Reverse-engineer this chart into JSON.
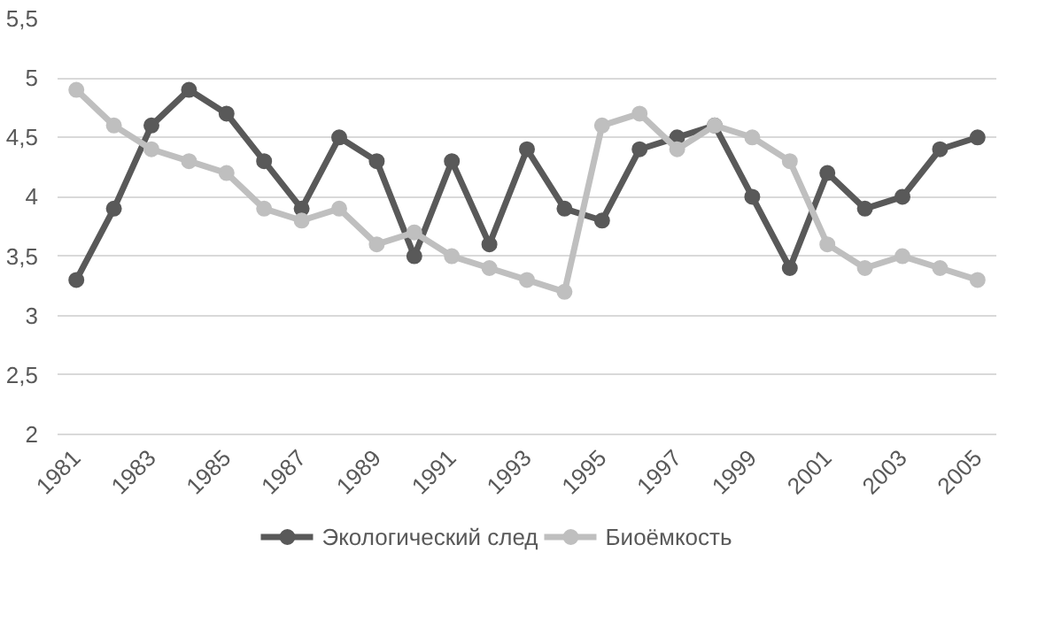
{
  "chart_data": {
    "type": "line",
    "categories": [
      "1981",
      null,
      "1983",
      null,
      "1985",
      null,
      "1987",
      null,
      "1989",
      null,
      "1991",
      null,
      "1993",
      null,
      "1995",
      null,
      "1997",
      null,
      "1999",
      null,
      "2001",
      null,
      "2003",
      null,
      "2005"
    ],
    "series": [
      {
        "name": "Экологический след",
        "color": "#595959",
        "values": [
          3.3,
          3.9,
          4.6,
          4.9,
          4.7,
          4.3,
          3.9,
          4.5,
          4.3,
          3.5,
          4.3,
          3.6,
          4.4,
          3.9,
          3.8,
          4.4,
          4.5,
          4.6,
          4.0,
          3.4,
          4.2,
          3.9,
          4.0,
          4.4,
          4.5
        ]
      },
      {
        "name": "Биоёмкость",
        "color": "#bfbfbf",
        "values": [
          4.9,
          4.6,
          4.4,
          4.3,
          4.2,
          3.9,
          3.8,
          3.9,
          3.6,
          3.7,
          3.5,
          3.4,
          3.3,
          3.2,
          4.6,
          4.7,
          4.4,
          4.6,
          4.5,
          4.3,
          3.6,
          3.4,
          3.5,
          3.4,
          3.3
        ]
      }
    ],
    "ylim": [
      2,
      5.5
    ],
    "yticks": [
      2,
      {
        "value": 2.5,
        "label": "2,5"
      },
      3,
      {
        "value": 3.5,
        "label": "3,5"
      },
      4,
      {
        "value": 4.5,
        "label": "4,5"
      },
      5,
      {
        "value": 5.5,
        "label": "5,5"
      }
    ],
    "grid": "y",
    "legend": "bottom",
    "marker": "circle",
    "line_style": "solid"
  }
}
